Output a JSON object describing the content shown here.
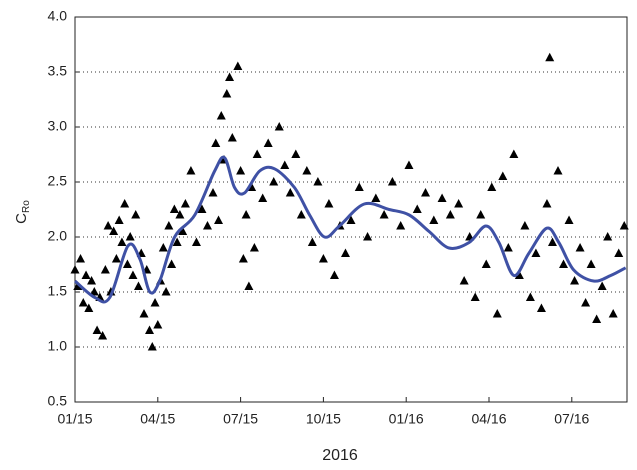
{
  "chart_data": {
    "type": "scatter",
    "x_label": "2016",
    "y_label": "C",
    "y_label_subscript": "Ro",
    "xlim": [
      0,
      20
    ],
    "xticks": [
      {
        "value": 0,
        "label": "01/15"
      },
      {
        "value": 3,
        "label": "04/15"
      },
      {
        "value": 6,
        "label": "07/15"
      },
      {
        "value": 9,
        "label": "10/15"
      },
      {
        "value": 12,
        "label": "01/16"
      },
      {
        "value": 15,
        "label": "04/16"
      },
      {
        "value": 18,
        "label": "07/16"
      }
    ],
    "ylim": [
      0.5,
      4.0
    ],
    "yticks": [
      {
        "value": 0.5,
        "label": "0.5"
      },
      {
        "value": 1.0,
        "label": "1.0"
      },
      {
        "value": 1.5,
        "label": "1.5"
      },
      {
        "value": 2.0,
        "label": "2.0"
      },
      {
        "value": 2.5,
        "label": "2.5"
      },
      {
        "value": 3.0,
        "label": "3.0"
      },
      {
        "value": 3.5,
        "label": "3.5"
      },
      {
        "value": 4.0,
        "label": "4.0"
      }
    ],
    "grid": true,
    "series": [
      {
        "type": "scatter",
        "color": "#000000",
        "x": [
          0.0,
          0.1,
          0.2,
          0.3,
          0.4,
          0.5,
          0.6,
          0.7,
          0.8,
          0.9,
          1.0,
          1.1,
          1.2,
          1.3,
          1.4,
          1.5,
          1.6,
          1.7,
          1.8,
          1.9,
          2.0,
          2.1,
          2.2,
          2.3,
          2.4,
          2.5,
          2.6,
          2.7,
          2.8,
          2.9,
          3.0,
          3.1,
          3.2,
          3.3,
          3.4,
          3.5,
          3.6,
          3.7,
          3.8,
          3.9,
          4.0,
          4.2,
          4.4,
          4.6,
          4.8,
          5.0,
          5.1,
          5.2,
          5.3,
          5.4,
          5.5,
          5.6,
          5.7,
          5.9,
          6.0,
          6.1,
          6.2,
          6.3,
          6.4,
          6.5,
          6.6,
          6.8,
          7.0,
          7.2,
          7.4,
          7.6,
          7.8,
          8.0,
          8.2,
          8.4,
          8.6,
          8.8,
          9.0,
          9.2,
          9.4,
          9.6,
          9.8,
          10.0,
          10.3,
          10.6,
          10.9,
          11.2,
          11.5,
          11.8,
          12.1,
          12.4,
          12.7,
          13.0,
          13.3,
          13.6,
          13.9,
          14.1,
          14.3,
          14.5,
          14.7,
          14.9,
          15.1,
          15.3,
          15.5,
          15.7,
          15.9,
          16.1,
          16.3,
          16.5,
          16.7,
          16.9,
          17.1,
          17.2,
          17.3,
          17.5,
          17.7,
          17.9,
          18.1,
          18.3,
          18.5,
          18.7,
          18.9,
          19.1,
          19.3,
          19.5,
          19.7,
          19.9
        ],
        "values": [
          1.7,
          1.55,
          1.8,
          1.4,
          1.65,
          1.35,
          1.6,
          1.5,
          1.15,
          1.45,
          1.1,
          1.7,
          2.1,
          1.5,
          2.05,
          1.8,
          2.15,
          1.95,
          2.3,
          1.75,
          2.0,
          1.65,
          2.2,
          1.55,
          1.85,
          1.3,
          1.7,
          1.15,
          1.0,
          1.4,
          1.2,
          1.6,
          1.9,
          1.5,
          2.1,
          1.75,
          2.25,
          1.95,
          2.2,
          2.05,
          2.3,
          2.6,
          1.95,
          2.25,
          2.1,
          2.4,
          2.85,
          2.15,
          3.1,
          2.7,
          3.3,
          3.45,
          2.9,
          3.55,
          2.6,
          1.8,
          2.2,
          1.55,
          2.45,
          1.9,
          2.75,
          2.35,
          2.85,
          2.5,
          3.0,
          2.65,
          2.4,
          2.75,
          2.2,
          2.6,
          1.95,
          2.5,
          1.8,
          2.3,
          1.65,
          2.1,
          1.85,
          2.15,
          2.45,
          2.0,
          2.35,
          2.2,
          2.5,
          2.1,
          2.65,
          2.25,
          2.4,
          2.15,
          2.35,
          2.2,
          2.3,
          1.6,
          2.0,
          1.45,
          2.2,
          1.75,
          2.45,
          1.3,
          2.55,
          1.9,
          2.75,
          1.65,
          2.1,
          1.45,
          1.85,
          1.35,
          2.3,
          3.63,
          1.95,
          2.6,
          1.75,
          2.15,
          1.6,
          1.9,
          1.4,
          1.75,
          1.25,
          1.55,
          2.0,
          1.3,
          1.85,
          2.1
        ]
      },
      {
        "type": "line",
        "color": "#3f51a5",
        "x": [
          0,
          0.72,
          1.26,
          1.92,
          2.35,
          2.71,
          3.07,
          3.61,
          4.34,
          5.06,
          5.42,
          5.78,
          6.14,
          6.69,
          7.23,
          7.95,
          8.5,
          9.04,
          9.58,
          10.48,
          11.38,
          12.11,
          12.83,
          13.55,
          14.28,
          14.89,
          15.36,
          15.9,
          16.44,
          17.09,
          17.53,
          18.07,
          18.79,
          19.41,
          19.95
        ],
        "values": [
          1.6,
          1.45,
          1.45,
          1.92,
          1.8,
          1.5,
          1.6,
          2.0,
          2.2,
          2.6,
          2.72,
          2.45,
          2.4,
          2.6,
          2.62,
          2.45,
          2.2,
          2.0,
          2.1,
          2.3,
          2.25,
          2.2,
          2.05,
          1.9,
          1.95,
          2.1,
          1.95,
          1.65,
          1.85,
          2.08,
          1.95,
          1.7,
          1.6,
          1.65,
          1.72
        ]
      }
    ]
  }
}
